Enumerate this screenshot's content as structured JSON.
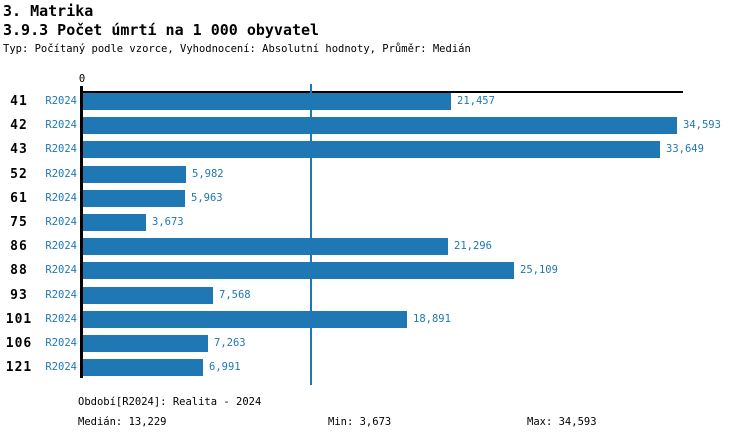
{
  "header": {
    "title": "3. Matrika",
    "subtitle": "3.9.3 Počet úmrtí na 1 000 obyvatel",
    "meta": "Typ: Počítaný podle vzorce, Vyhodnocení: Absolutní hodnoty, Průměr: Medián"
  },
  "chart_data": {
    "type": "bar",
    "orientation": "horizontal",
    "title": "3.9.3 Počet úmrtí na 1 000 obyvatel",
    "series_label": "R2024",
    "categories": [
      "41",
      "42",
      "43",
      "52",
      "61",
      "75",
      "86",
      "88",
      "93",
      "101",
      "106",
      "121"
    ],
    "values": [
      21457,
      34593,
      33649,
      5982,
      5963,
      3673,
      21296,
      25109,
      7568,
      18891,
      7263,
      6991
    ],
    "value_labels": [
      "21,457",
      "34,593",
      "33,649",
      "5,982",
      "5,963",
      "3,673",
      "21,296",
      "25,109",
      "7,568",
      "18,891",
      "7,263",
      "6,991"
    ],
    "axis": {
      "origin_label": "0",
      "xlim_min": 0,
      "median_value": 13229
    },
    "median": 13229,
    "min": 3673,
    "max": 34593,
    "bar_color": "#1f77b4",
    "label_color": "#1f77b4",
    "median_line_color": "#1f77b4",
    "legend_position": "none",
    "grid": false
  },
  "footer": {
    "period": "Období[R2024]: Realita - 2024",
    "median": "Medián: 13,229",
    "min": "Min: 3,673",
    "max": "Max: 34,593"
  }
}
